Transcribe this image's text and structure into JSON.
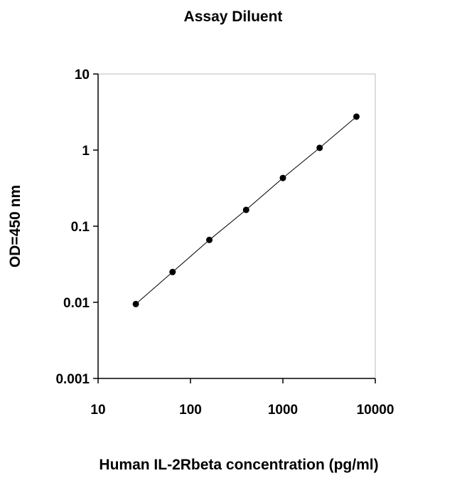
{
  "chart_data": {
    "type": "scatter",
    "title": "Assay Diluent",
    "x_label": "Human IL-2Rbeta concentration (pg/ml)",
    "y_label": "OD=450 nm",
    "x": [
      25.6,
      64,
      160,
      400,
      1000,
      2500,
      6250
    ],
    "series": [
      {
        "color": "#000000",
        "values": [
          0.0095,
          0.025,
          0.066,
          0.164,
          0.43,
          1.07,
          2.75
        ]
      }
    ],
    "x_log": true,
    "y_log": true,
    "xlim": [
      10,
      10000
    ],
    "xticks": [
      10,
      100,
      1000,
      10000
    ],
    "ylim": [
      0.001,
      10
    ],
    "yticks": [
      0.001,
      0.01,
      0.1,
      1,
      10
    ]
  }
}
